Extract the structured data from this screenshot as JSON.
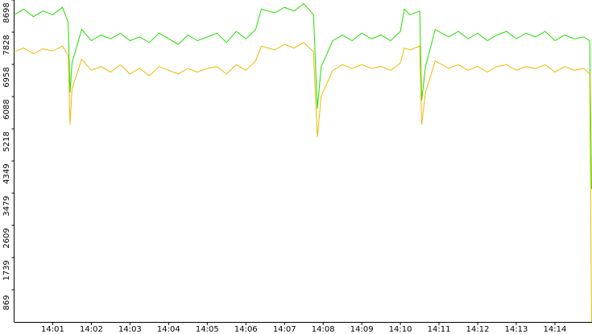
{
  "chart_data": {
    "type": "line",
    "x": [
      0,
      0.25,
      0.5,
      0.75,
      1,
      1.25,
      1.4,
      1.45,
      1.5,
      1.75,
      2,
      2.25,
      2.5,
      2.75,
      3,
      3.25,
      3.5,
      3.75,
      4,
      4.25,
      4.5,
      4.75,
      5,
      5.25,
      5.5,
      5.75,
      6,
      6.25,
      6.4,
      6.75,
      7,
      7.25,
      7.5,
      7.75,
      7.85,
      7.95,
      8.25,
      8.5,
      8.75,
      9,
      9.25,
      9.5,
      9.75,
      10,
      10.1,
      10.25,
      10.5,
      10.55,
      10.65,
      10.9,
      11.25,
      11.5,
      11.75,
      12,
      12.25,
      12.5,
      12.75,
      13,
      13.25,
      13.5,
      13.75,
      14,
      14.25,
      14.5,
      14.75,
      14.9,
      14.95
    ],
    "series": [
      {
        "color": "#22dd00",
        "values": [
          8300,
          8450,
          8250,
          8400,
          8300,
          8500,
          8100,
          6200,
          7000,
          7900,
          7600,
          7750,
          7650,
          7800,
          7600,
          7700,
          7550,
          7800,
          7650,
          7500,
          7750,
          7600,
          7700,
          7800,
          7550,
          7850,
          7650,
          7900,
          8450,
          8350,
          8500,
          8400,
          8600,
          8300,
          5760,
          6900,
          7600,
          7750,
          7600,
          7800,
          7650,
          7750,
          7600,
          7850,
          8450,
          8300,
          8400,
          5980,
          6900,
          7900,
          7700,
          7850,
          7650,
          7800,
          7600,
          7750,
          7850,
          7650,
          7800,
          7700,
          7850,
          7600,
          7750,
          7650,
          7700,
          7600,
          3590
        ]
      },
      {
        "color": "#f0b800",
        "values": [
          7300,
          7400,
          7250,
          7380,
          7320,
          7450,
          7200,
          5330,
          6300,
          7100,
          6800,
          6900,
          6750,
          6950,
          6700,
          6850,
          6650,
          6900,
          6800,
          6700,
          6850,
          6750,
          6850,
          6900,
          6700,
          6950,
          6800,
          7050,
          7450,
          7350,
          7500,
          7400,
          7550,
          7300,
          5000,
          6100,
          6800,
          6950,
          6850,
          6950,
          6850,
          6900,
          6800,
          7000,
          7400,
          7350,
          7450,
          5330,
          6200,
          7050,
          6850,
          6950,
          6800,
          6900,
          6750,
          6900,
          6950,
          6800,
          6900,
          6850,
          6950,
          6750,
          6900,
          6800,
          6850,
          6700,
          0
        ]
      }
    ],
    "xlim": [
      0,
      14.96
    ],
    "xticks": [
      {
        "value": 1,
        "label": "14:01"
      },
      {
        "value": 2,
        "label": "14:02"
      },
      {
        "value": 3,
        "label": "14:03"
      },
      {
        "value": 4,
        "label": "14:04"
      },
      {
        "value": 5,
        "label": "14:05"
      },
      {
        "value": 6,
        "label": "14:06"
      },
      {
        "value": 7,
        "label": "14:07"
      },
      {
        "value": 8,
        "label": "14:08"
      },
      {
        "value": 9,
        "label": "14:09"
      },
      {
        "value": 10,
        "label": "14:10"
      },
      {
        "value": 11,
        "label": "14:11"
      },
      {
        "value": 12,
        "label": "14:12"
      },
      {
        "value": 13,
        "label": "14:13"
      },
      {
        "value": 14,
        "label": "14:14"
      }
    ],
    "ylim": [
      0,
      8698
    ],
    "yticks": [
      869,
      1739,
      2609,
      3479,
      4349,
      5218,
      6088,
      6958,
      7828,
      8698
    ]
  }
}
